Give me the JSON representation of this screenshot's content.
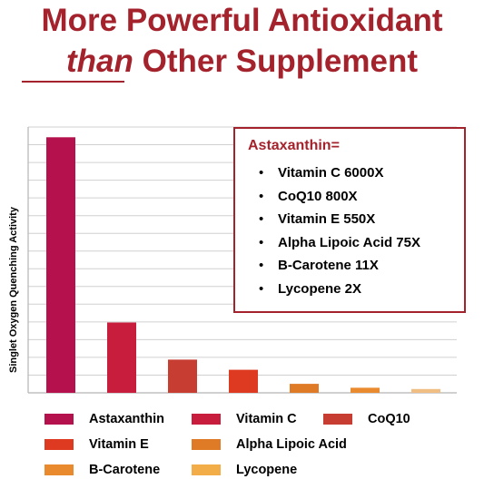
{
  "header": {
    "line1": "More Powerful Antioxidant",
    "line2_em": "than",
    "line2_rest": " Other Supplement"
  },
  "chart_data": {
    "type": "bar",
    "ylabel": "Singlet Oxygen Quenching Activity",
    "categories": [
      "Astaxanthin",
      "Vitamin C",
      "CoQ10",
      "Vitamin E",
      "Alpha Lipoic Acid",
      "B-Carotene",
      "Lycopene"
    ],
    "values": [
      100,
      27.5,
      13,
      9,
      3.5,
      2,
      1.5
    ],
    "ylim": [
      0,
      104
    ],
    "grid": true,
    "colors": [
      "#b5124d",
      "#c81d3d",
      "#c83d31",
      "#dd3a21",
      "#df7a26",
      "#e98a2e",
      "#f0bd82"
    ],
    "legend": [
      "Astaxanthin",
      "Vitamin C",
      "CoQ10",
      "Vitamin E",
      "Alpha Lipoic Acid",
      "B-Carotene",
      "Lycopene"
    ],
    "legend_colors": [
      "#b5124d",
      "#c81d3d",
      "#c83d31",
      "#dd3a21",
      "#df7a26",
      "#e98a2e",
      "#f2ad48"
    ],
    "annotation": {
      "title": "Astaxanthin=",
      "items": [
        "Vitamin C  6000X",
        "CoQ10  800X",
        "Vitamin E  550X",
        "Alpha Lipoic Acid  75X",
        "B-Carotene  11X",
        "Lycopene  2X"
      ]
    }
  }
}
